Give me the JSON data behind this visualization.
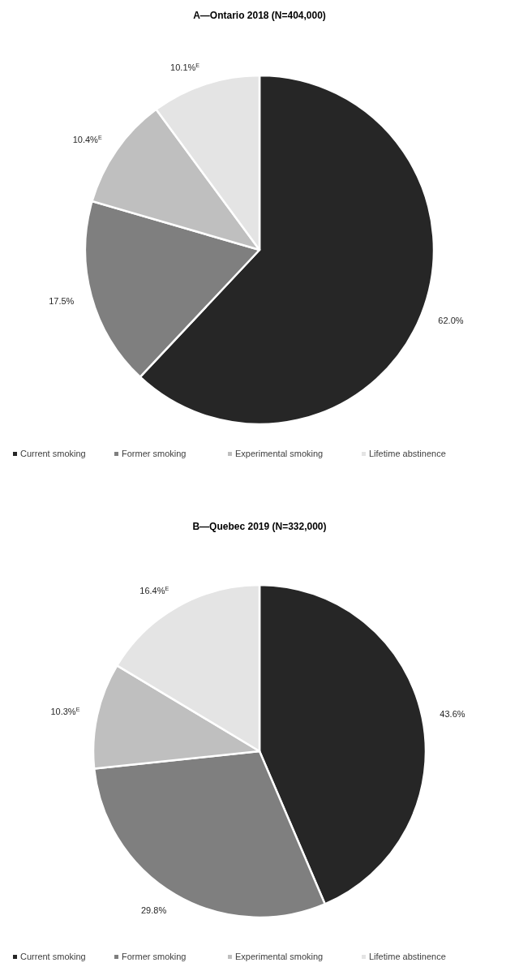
{
  "chart_data": [
    {
      "type": "pie",
      "title": "A—Ontario 2018 (N=404,000)",
      "categories": [
        "Current smoking",
        "Former smoking",
        "Experimental smoking",
        "Lifetime abstinence"
      ],
      "values": [
        62.0,
        17.5,
        10.4,
        10.1
      ],
      "value_labels": [
        "62.0%",
        "17.5%",
        "10.4%$^{E}$",
        "10.1%$^{E}$"
      ],
      "colors": [
        "#262626",
        "#7f7f7f",
        "#bfbfbf",
        "#e4e4e4"
      ],
      "legend": "bottom"
    },
    {
      "type": "pie",
      "title": "B—Quebec 2019 (N=332,000)",
      "categories": [
        "Current smoking",
        "Former smoking",
        "Experimental smoking",
        "Lifetime abstinence"
      ],
      "values": [
        43.6,
        29.8,
        10.3,
        16.4
      ],
      "value_labels": [
        "43.6%",
        "29.8%",
        "10.3%$^{E}$",
        "16.4%$^{E}$"
      ],
      "colors": [
        "#262626",
        "#7f7f7f",
        "#bfbfbf",
        "#e4e4e4"
      ],
      "legend": "bottom"
    }
  ]
}
